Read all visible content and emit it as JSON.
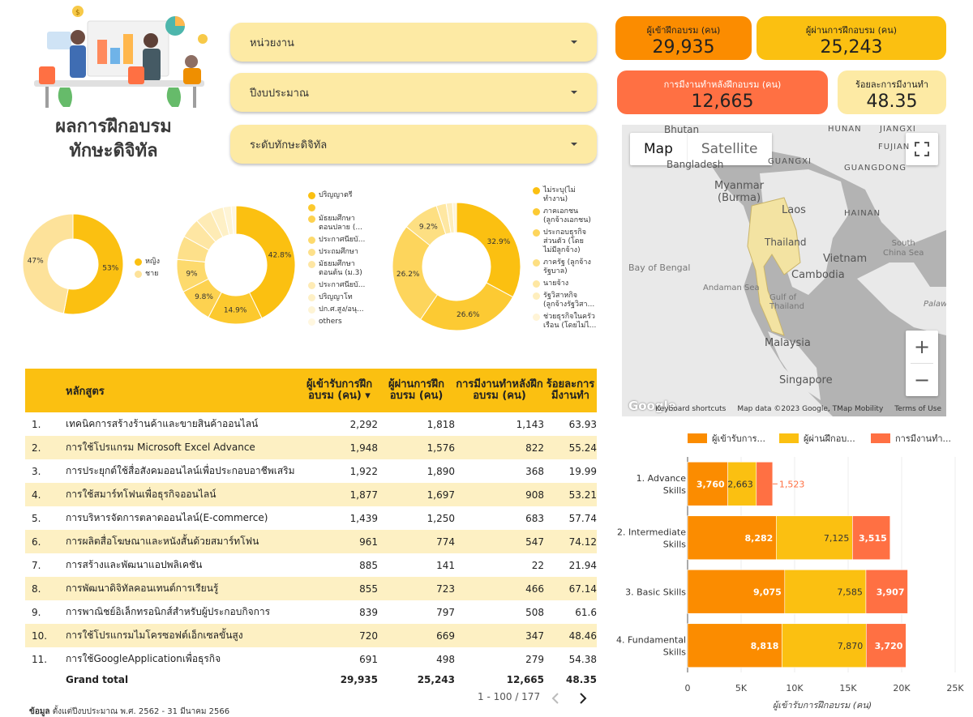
{
  "title": {
    "line1": "ผลการฝึกอบรม",
    "line2": "ทักษะดิจิทัล"
  },
  "filters": [
    {
      "label": "หน่วยงาน"
    },
    {
      "label": "ปีงบประมาณ"
    },
    {
      "label": "ระดับทักษะดิจิทัล"
    }
  ],
  "kpis": {
    "enrolled": {
      "label": "ผู้เข้าฝึกอบรม (คน)",
      "value": "29,935",
      "color": "#fb8c00"
    },
    "passed": {
      "label": "ผู้ผ่านการฝึกอบรม (คน)",
      "value": "25,243",
      "color": "#fbc011"
    },
    "employed": {
      "label": "การมีงานทำหลังฝึกอบรม (คน)",
      "value": "12,665",
      "color": "#ff7043"
    },
    "employment_rate": {
      "label": "ร้อยละการมีงานทำ",
      "value": "48.35",
      "color": "#fdeaa4"
    }
  },
  "map": {
    "type_map": "Map",
    "type_satellite": "Satellite",
    "labels": {
      "bhutan": "Bhutan",
      "guangdong": "GUANGDONG",
      "hunan": "HUNAN",
      "jiangxi": "JIANGXI",
      "bangladesh": "Bangladesh",
      "guangxi": "GUANGXI",
      "fujian": "FUJIAN",
      "myanmar": "Myanmar\n(Burma)",
      "laos": "Laos",
      "hainan": "HAINAN",
      "thailand": "Thailand",
      "vietnam": "Vietnam",
      "south_china_sea": "South\nChina Sea",
      "bay_of_bengal": "Bay of Bengal",
      "cambodia": "Cambodia",
      "andaman_sea": "Andaman Sea",
      "gulf_of_thailand": "Gulf of\nThailand",
      "palaw": "Palaw",
      "malaysia": "Malaysia",
      "singapore": "Singapore",
      "google": "Google"
    },
    "footer": {
      "shortcuts": "Keyboard shortcuts",
      "data": "Map data ©2023 Google, TMap Mobility",
      "terms": "Terms of Use"
    },
    "zoom_in": "+",
    "zoom_out": "−"
  },
  "donut_gender": {
    "slices": [
      {
        "label": "หญิง",
        "value": 53,
        "pct": "53%",
        "color": "#fbc011"
      },
      {
        "label": "ชาย",
        "value": 47,
        "pct": "47%",
        "color": "#fde29a"
      }
    ]
  },
  "donut_education": {
    "slices": [
      {
        "label": "ปริญญาตรี",
        "value": 42.8,
        "pct": "42.8%",
        "color": "#fbc011"
      },
      {
        "label": "",
        "value": 14.9,
        "pct": "14.9%",
        "color": "#fcc92e"
      },
      {
        "label": "มัธยมศึกษา\nตอนปลาย (...",
        "value": 9.8,
        "pct": "9.8%",
        "color": "#fdd250"
      },
      {
        "label": "ประกาศนียบั...",
        "value": 9,
        "pct": "9%",
        "color": "#fdda6d"
      },
      {
        "label": "ประถมศึกษา",
        "value": 6.5,
        "pct": "",
        "color": "#fde08a"
      },
      {
        "label": "มัธยมศึกษา\nตอนต้น (ม.3)",
        "value": 5.5,
        "pct": "",
        "color": "#fee6a3"
      },
      {
        "label": "ประกาศนียบั...",
        "value": 4.5,
        "pct": "",
        "color": "#feebb5"
      },
      {
        "label": "ปริญญาโท",
        "value": 3.5,
        "pct": "",
        "color": "#fef0c6"
      },
      {
        "label": "ปก.ศ.สูง/อนุ...",
        "value": 2.2,
        "pct": "",
        "color": "#fef4d5"
      },
      {
        "label": "others",
        "value": 1.3,
        "pct": "",
        "color": "#fff7e0"
      }
    ]
  },
  "donut_occupation": {
    "slices": [
      {
        "label": "ไม่ระบุ(ไม่\nทำงาน)",
        "value": 32.9,
        "pct": "32.9%",
        "color": "#fbc011"
      },
      {
        "label": "ภาคเอกชน\n(ลูกจ้างเอกชน)",
        "value": 26.6,
        "pct": "26.6%",
        "color": "#fcca33"
      },
      {
        "label": "ประกอบธุรกิจ\nส่วนตัว (โดย\nไม่มีลูกจ้าง)",
        "value": 26.2,
        "pct": "26.2%",
        "color": "#fdd55c"
      },
      {
        "label": "ภาครัฐ (ลูกจ้าง\nรัฐบาล)",
        "value": 9.2,
        "pct": "9.2%",
        "color": "#fddf82"
      },
      {
        "label": "นายจ้าง",
        "value": 2.5,
        "pct": "",
        "color": "#fee7a2"
      },
      {
        "label": "รัฐวิสาหกิจ\n(ลูกจ้างรัฐวิสา...",
        "value": 1.6,
        "pct": "",
        "color": "#feeebd"
      },
      {
        "label": "ช่วยธุรกิจในครัว\nเรือน (โดยไม่ไ...",
        "value": 1.0,
        "pct": "",
        "color": "#fff4d6"
      }
    ]
  },
  "table": {
    "headers": {
      "course": "หลักสูตร",
      "enrolled": "ผู้เข้ารับการฝึกอบรม (คน) ▾",
      "passed": "ผู้ผ่านการฝึกอบรม (คน)",
      "employed": "การมีงานทำหลังฝึกอบรม (คน)",
      "rate": "ร้อยละการมีงานทำ"
    },
    "rows": [
      {
        "no": "1.",
        "course": "เทคนิคการสร้างร้านค้าและขายสินค้าออนไลน์",
        "enrolled": "2,292",
        "passed": "1,818",
        "employed": "1,143",
        "rate": "63.93"
      },
      {
        "no": "2.",
        "course": "การใช้โปรแกรม Microsoft Excel Advance",
        "enrolled": "1,948",
        "passed": "1,576",
        "employed": "822",
        "rate": "55.24"
      },
      {
        "no": "3.",
        "course": "การประยุกต์ใช้สื่อสังคมออนไลน์เพื่อประกอบอาชีพเสริม",
        "enrolled": "1,922",
        "passed": "1,890",
        "employed": "368",
        "rate": "19.99"
      },
      {
        "no": "4.",
        "course": "การใช้สมาร์ทโฟนเพื่อธุรกิจออนไลน์",
        "enrolled": "1,877",
        "passed": "1,697",
        "employed": "908",
        "rate": "53.21"
      },
      {
        "no": "5.",
        "course": "การบริหารจัดการตลาดออนไลน์(E-commerce)",
        "enrolled": "1,439",
        "passed": "1,250",
        "employed": "683",
        "rate": "57.74"
      },
      {
        "no": "6.",
        "course": "การผลิตสื่อโฆษณาและหนังสั้นด้วยสมาร์ทโฟน",
        "enrolled": "961",
        "passed": "774",
        "employed": "547",
        "rate": "74.12"
      },
      {
        "no": "7.",
        "course": "การสร้างและพัฒนาแอปพลิเคชัน",
        "enrolled": "885",
        "passed": "141",
        "employed": "22",
        "rate": "21.94"
      },
      {
        "no": "8.",
        "course": "การพัฒนาดิจิทัลคอนเทนต์การเรียนรู้",
        "enrolled": "855",
        "passed": "723",
        "employed": "466",
        "rate": "67.14"
      },
      {
        "no": "9.",
        "course": "การพาณิชย์อิเล็กทรอนิกส์สำหรับผู้ประกอบกิจการ",
        "enrolled": "839",
        "passed": "797",
        "employed": "508",
        "rate": "61.6"
      },
      {
        "no": "10.",
        "course": "การใช้โปรแกรมไมโครซอฟต์เอ็กเซลขั้นสูง",
        "enrolled": "720",
        "passed": "669",
        "employed": "347",
        "rate": "48.46"
      },
      {
        "no": "11.",
        "course": "การใช้GoogleApplicationเพื่อธุรกิจ",
        "enrolled": "691",
        "passed": "498",
        "employed": "279",
        "rate": "54.38"
      }
    ],
    "total": {
      "label": "Grand total",
      "enrolled": "29,935",
      "passed": "25,243",
      "employed": "12,665",
      "rate": "48.35"
    },
    "pagination": "1 - 100 / 177"
  },
  "footnote": {
    "bold": "ข้อมูล",
    "text": " ตั้งแต่ปีงบประมาณ พ.ศ. 2562 - 31 มีนาคม 2566"
  },
  "chart_data": {
    "type": "bar",
    "orientation": "horizontal-stacked",
    "categories": [
      "1. Advance\nSkills",
      "2. Intermediate\nSkills",
      "3. Basic Skills",
      "4. Fundamental\nSkills"
    ],
    "series": [
      {
        "name": "ผู้เข้ารับการ...",
        "values": [
          3760,
          8282,
          9075,
          8818
        ],
        "labels": [
          "3,760",
          "8,282",
          "9,075",
          "8,818"
        ],
        "color": "#fb8c00"
      },
      {
        "name": "ผู้ผ่านฝึกอบ...",
        "values": [
          2663,
          7125,
          7585,
          7870
        ],
        "labels": [
          "2,663",
          "7,125",
          "7,585",
          "7,870"
        ],
        "color": "#fbc011"
      },
      {
        "name": "การมีงานทำ...",
        "values": [
          1523,
          3515,
          3907,
          3720
        ],
        "labels": [
          "1,523",
          "3,515",
          "3,907",
          "3,720"
        ],
        "color": "#ff7043"
      }
    ],
    "xlim": [
      0,
      25000
    ],
    "xticks": [
      "0",
      "5K",
      "10K",
      "15K",
      "20K",
      "25K"
    ],
    "xlabel": "ผู้เข้ารับการฝึกอบรม (คน)",
    "legend": "top"
  }
}
